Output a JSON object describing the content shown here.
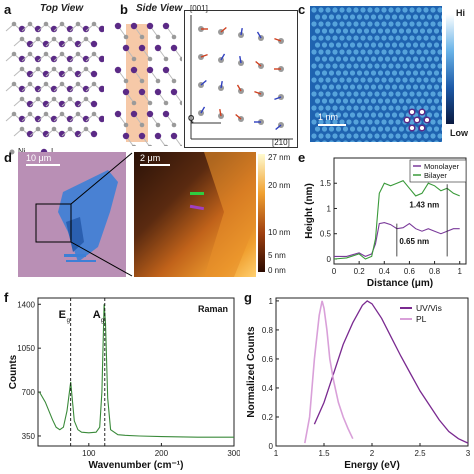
{
  "panels": {
    "a": {
      "letter": "a",
      "title": "Top View",
      "legend_ni": "Ni",
      "legend_i": "I"
    },
    "b": {
      "letter": "b",
      "title": "Side View",
      "axis_top": "[001]",
      "axis_q": "Q",
      "axis_right": "[210]"
    },
    "c": {
      "letter": "c",
      "scale": "1 nm",
      "cbar_hi": "Hi",
      "cbar_low": "Low"
    },
    "d": {
      "letter": "d",
      "scale_left": "10 μm",
      "scale_right": "2 μm",
      "cbar_ticks": [
        "27 nm",
        "20 nm",
        "10 nm",
        "5 nm",
        "0 nm"
      ]
    },
    "e": {
      "letter": "e"
    },
    "f": {
      "letter": "f"
    },
    "g": {
      "letter": "g"
    }
  },
  "colors": {
    "ni": "#9a9a9a",
    "i": "#5b2a86",
    "monolayer": "#7a3a9a",
    "bilayer": "#3a9a3a",
    "raman": "#3a8a3a",
    "uvvis": "#7a2a90",
    "pl": "#d9a0d9"
  },
  "chart_data": [
    {
      "type": "line",
      "panel": "e",
      "xlabel": "Distance (μm)",
      "ylabel": "Height (nm)",
      "xlim": [
        0,
        1.05
      ],
      "ylim": [
        -0.1,
        2.0
      ],
      "xticks": [
        "0",
        "0.2",
        "0.4",
        "0.6",
        "0.8",
        "1"
      ],
      "yticks": [
        "0",
        "0.5",
        "1",
        "1.5"
      ],
      "legend": "top-right",
      "series": [
        {
          "name": "Monolayer",
          "x": [
            0,
            0.1,
            0.2,
            0.25,
            0.3,
            0.33,
            0.36,
            0.4,
            0.45,
            0.5,
            0.55,
            0.6,
            0.65,
            0.7,
            0.75,
            0.8,
            0.85,
            0.9,
            0.95,
            1.0
          ],
          "y": [
            0.05,
            0.05,
            0.12,
            0.05,
            0.1,
            0.3,
            0.7,
            0.72,
            0.68,
            0.6,
            0.62,
            0.7,
            0.6,
            0.55,
            0.6,
            0.55,
            0.5,
            0.55,
            0.6,
            0.6
          ]
        },
        {
          "name": "Bilayer",
          "x": [
            0,
            0.1,
            0.2,
            0.25,
            0.3,
            0.33,
            0.36,
            0.4,
            0.45,
            0.5,
            0.55,
            0.6,
            0.65,
            0.7,
            0.75,
            0.8,
            0.85,
            0.9,
            0.95,
            1.0
          ],
          "y": [
            0.0,
            0.02,
            0.1,
            0.0,
            0.05,
            0.4,
            1.3,
            1.5,
            1.45,
            1.5,
            1.55,
            1.4,
            1.25,
            1.3,
            1.5,
            1.45,
            1.35,
            1.4,
            1.3,
            1.25
          ]
        }
      ],
      "annotations": [
        "1.43 nm",
        "0.65 nm"
      ]
    },
    {
      "type": "line",
      "panel": "f",
      "xlabel": "Wavenumber (cm⁻¹)",
      "ylabel": "Counts",
      "xlim": [
        30,
        300
      ],
      "ylim": [
        270,
        1450
      ],
      "xticks": [
        "100",
        "200",
        "300"
      ],
      "yticks": [
        "350",
        "700",
        "1050",
        "1400"
      ],
      "legend": "top-right",
      "series": [
        {
          "name": "Raman",
          "x": [
            32,
            40,
            50,
            55,
            60,
            65,
            70,
            75,
            80,
            85,
            90,
            100,
            110,
            115,
            118,
            121,
            123,
            126,
            130,
            140,
            150,
            170,
            200,
            250,
            300
          ],
          "y": [
            700,
            620,
            480,
            420,
            400,
            420,
            550,
            780,
            470,
            400,
            380,
            375,
            380,
            420,
            700,
            1400,
            1250,
            650,
            400,
            360,
            355,
            350,
            345,
            340,
            340
          ]
        }
      ],
      "peaks": {
        "Eg": 75,
        "Ag1": 122
      },
      "peak_labels": [
        "E",
        "A"
      ]
    },
    {
      "type": "line",
      "panel": "g",
      "xlabel": "Energy (eV)",
      "ylabel": "Normalized Counts",
      "xlim": [
        1.0,
        3.0
      ],
      "ylim": [
        0,
        1.02
      ],
      "xticks": [
        "1",
        "1.5",
        "2",
        "2.5",
        "3"
      ],
      "yticks": [
        "0",
        "0.2",
        "0.4",
        "0.6",
        "0.8",
        "1"
      ],
      "legend": "top-right",
      "series": [
        {
          "name": "UV/Vis",
          "x": [
            1.4,
            1.5,
            1.6,
            1.7,
            1.8,
            1.9,
            1.95,
            2.0,
            2.1,
            2.2,
            2.3,
            2.4,
            2.5,
            2.6,
            2.7,
            2.8,
            2.9,
            3.0
          ],
          "y": [
            0.15,
            0.3,
            0.5,
            0.7,
            0.85,
            0.97,
            1.0,
            0.98,
            0.88,
            0.75,
            0.62,
            0.5,
            0.38,
            0.28,
            0.18,
            0.1,
            0.05,
            0.02
          ]
        },
        {
          "name": "PL",
          "x": [
            1.3,
            1.35,
            1.4,
            1.45,
            1.48,
            1.5,
            1.53,
            1.56,
            1.6,
            1.65,
            1.7,
            1.75,
            1.8
          ],
          "y": [
            0.02,
            0.2,
            0.6,
            0.9,
            1.0,
            0.95,
            0.8,
            0.6,
            0.45,
            0.3,
            0.2,
            0.12,
            0.05
          ]
        }
      ]
    }
  ]
}
